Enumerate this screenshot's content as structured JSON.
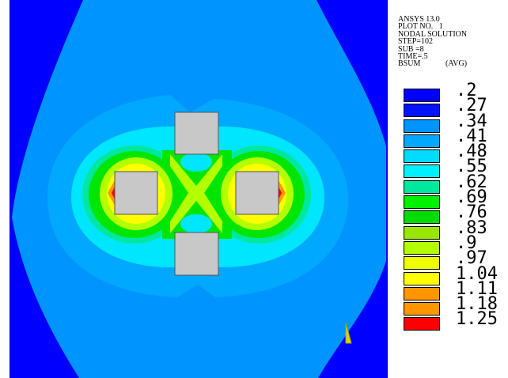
{
  "header": {
    "lines": [
      "ANSYS 13.0",
      "PLOT NO.   1",
      "NODAL SOLUTION",
      "STEP=102",
      "SUB =8",
      "TIME=.5",
      "BSUM"
    ],
    "avg": "(AVG)"
  },
  "legend": {
    "entries": [
      {
        "label": ".2",
        "color": "#0000ff"
      },
      {
        "label": ".27",
        "color": "#0014ff"
      },
      {
        "label": ".34",
        "color": "#0094ff"
      },
      {
        "label": ".41",
        "color": "#00a8ff"
      },
      {
        "label": ".48",
        "color": "#00dcff"
      },
      {
        "label": ".55",
        "color": "#00f0ff"
      },
      {
        "label": ".62",
        "color": "#00e8a0"
      },
      {
        "label": ".69",
        "color": "#00f000"
      },
      {
        "label": ".76",
        "color": "#00dc00"
      },
      {
        "label": ".83",
        "color": "#9be600"
      },
      {
        "label": ".9",
        "color": "#b4ff00"
      },
      {
        "label": ".97",
        "color": "#f0ff00"
      },
      {
        "label": "1.04",
        "color": "#ffff00"
      },
      {
        "label": "1.11",
        "color": "#ff9600"
      },
      {
        "label": "1.18",
        "color": "#ff9600"
      },
      {
        "label": "1.25",
        "color": "#ff0000"
      }
    ]
  }
}
